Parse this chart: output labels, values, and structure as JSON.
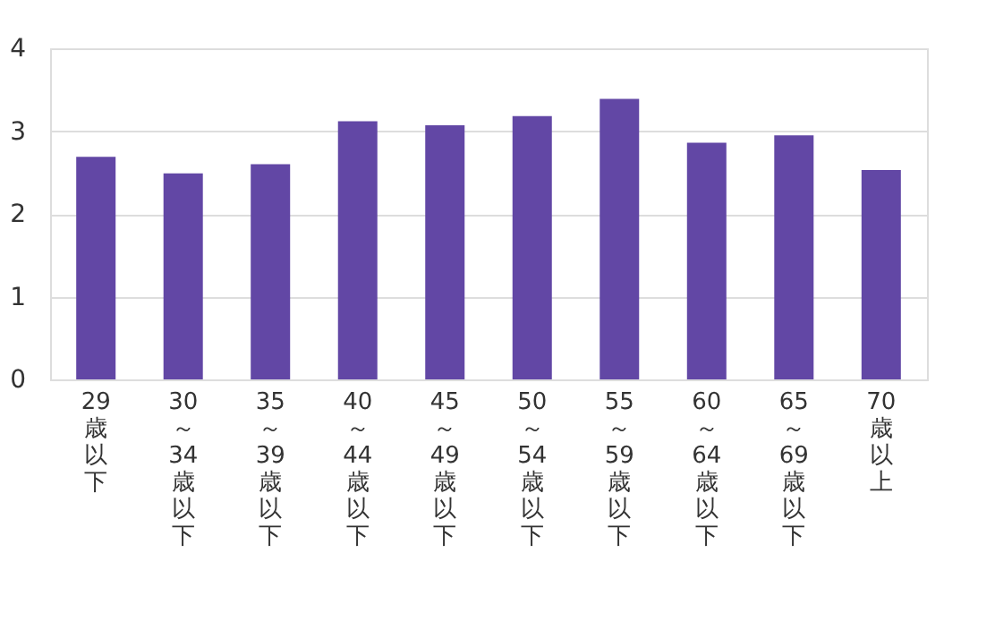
{
  "chart_data": {
    "type": "bar",
    "categories": [
      "29歳以下",
      "30～34歳以下",
      "35～39歳以下",
      "40～44歳以下",
      "45～49歳以下",
      "50～54歳以下",
      "55～59歳以下",
      "60～64歳以下",
      "65～69歳以下",
      "70歳以上"
    ],
    "values": [
      2.69,
      2.49,
      2.6,
      3.12,
      3.07,
      3.18,
      3.39,
      2.86,
      2.95,
      2.53
    ],
    "color": "#6247a5",
    "ylim": [
      0,
      4
    ],
    "yticks": [
      0,
      1,
      2,
      3,
      4
    ],
    "grid": "y"
  }
}
